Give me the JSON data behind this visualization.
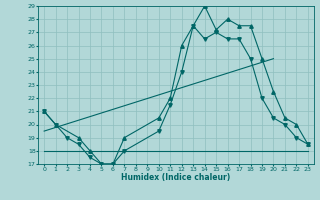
{
  "xlabel": "Humidex (Indice chaleur)",
  "background_color": "#b2d8d8",
  "grid_color": "#8fbfbf",
  "line_color": "#006666",
  "xlim": [
    -0.5,
    23.5
  ],
  "ylim": [
    17,
    29
  ],
  "yticks": [
    17,
    18,
    19,
    20,
    21,
    22,
    23,
    24,
    25,
    26,
    27,
    28,
    29
  ],
  "xticks": [
    0,
    1,
    2,
    3,
    4,
    5,
    6,
    7,
    8,
    9,
    10,
    11,
    12,
    13,
    14,
    15,
    16,
    17,
    18,
    19,
    20,
    21,
    22,
    23
  ],
  "line1_x": [
    0,
    1,
    2,
    3,
    4,
    5,
    6,
    7,
    10,
    11,
    12,
    13,
    14,
    15,
    16,
    17,
    18,
    19,
    20,
    21,
    22,
    23
  ],
  "line1_y": [
    21,
    20,
    19,
    18.5,
    17.5,
    17,
    17,
    18,
    19.5,
    21.5,
    24,
    27.5,
    26.5,
    27,
    26.5,
    26.5,
    25,
    22,
    20.5,
    20,
    19,
    18.5
  ],
  "line2_x": [
    0,
    1,
    3,
    4,
    5,
    6,
    7,
    10,
    11,
    12,
    13,
    14,
    15,
    16,
    17,
    18,
    19,
    20,
    21,
    22,
    23
  ],
  "line2_y": [
    21,
    20,
    19,
    18,
    17,
    17,
    19,
    20.5,
    22,
    26,
    27.5,
    29,
    27.2,
    28,
    27.5,
    27.5,
    25,
    22.5,
    20.5,
    20,
    18.5
  ],
  "line3_x": [
    0,
    23
  ],
  "line3_y": [
    18,
    18
  ],
  "line4_x": [
    0,
    20
  ],
  "line4_y": [
    19.5,
    25
  ]
}
